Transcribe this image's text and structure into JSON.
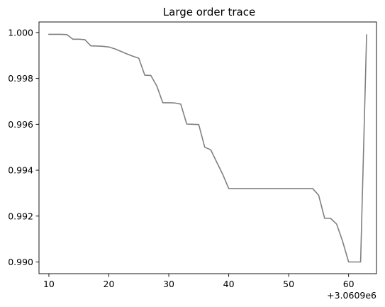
{
  "chart_data": {
    "type": "line",
    "title": "Large order trace",
    "xlabel": "",
    "ylabel": "",
    "x_offset_label": "+3.0609e6",
    "xlim": [
      8.35,
      64.65
    ],
    "ylim": [
      0.98949,
      1.00046
    ],
    "x_ticks": [
      10,
      20,
      30,
      40,
      50,
      60
    ],
    "x_tick_labels": [
      "10",
      "20",
      "30",
      "40",
      "50",
      "60"
    ],
    "y_ticks": [
      0.99,
      0.992,
      0.994,
      0.996,
      0.998,
      1.0
    ],
    "y_tick_labels": [
      "0.990",
      "0.992",
      "0.994",
      "0.996",
      "0.998",
      "1.000"
    ],
    "grid": false,
    "series": [
      {
        "color": "#808080",
        "x": [
          10,
          11,
          12,
          13,
          14,
          15,
          16,
          17,
          18,
          19,
          20,
          21,
          22,
          23,
          24,
          25,
          26,
          27,
          28,
          29,
          30,
          31,
          32,
          33,
          34,
          35,
          36,
          37,
          38,
          39,
          40,
          41,
          42,
          43,
          44,
          45,
          46,
          47,
          48,
          49,
          50,
          51,
          52,
          53,
          54,
          55,
          56,
          57,
          58,
          59,
          60,
          61,
          62,
          63
        ],
        "y": [
          0.99992,
          0.99992,
          0.99992,
          0.99991,
          0.99971,
          0.99971,
          0.99969,
          0.99942,
          0.99941,
          0.9994,
          0.99937,
          0.99929,
          0.99918,
          0.99907,
          0.99897,
          0.99888,
          0.99814,
          0.99813,
          0.99767,
          0.99694,
          0.99694,
          0.99693,
          0.99688,
          0.99601,
          0.996,
          0.99599,
          0.995,
          0.99489,
          0.99435,
          0.99382,
          0.9932,
          0.9932,
          0.9932,
          0.9932,
          0.9932,
          0.9932,
          0.9932,
          0.9932,
          0.9932,
          0.9932,
          0.9932,
          0.9932,
          0.9932,
          0.9932,
          0.9932,
          0.99291,
          0.9919,
          0.9919,
          0.99165,
          0.9909,
          0.99,
          0.99,
          0.99,
          0.9999
        ]
      }
    ]
  }
}
